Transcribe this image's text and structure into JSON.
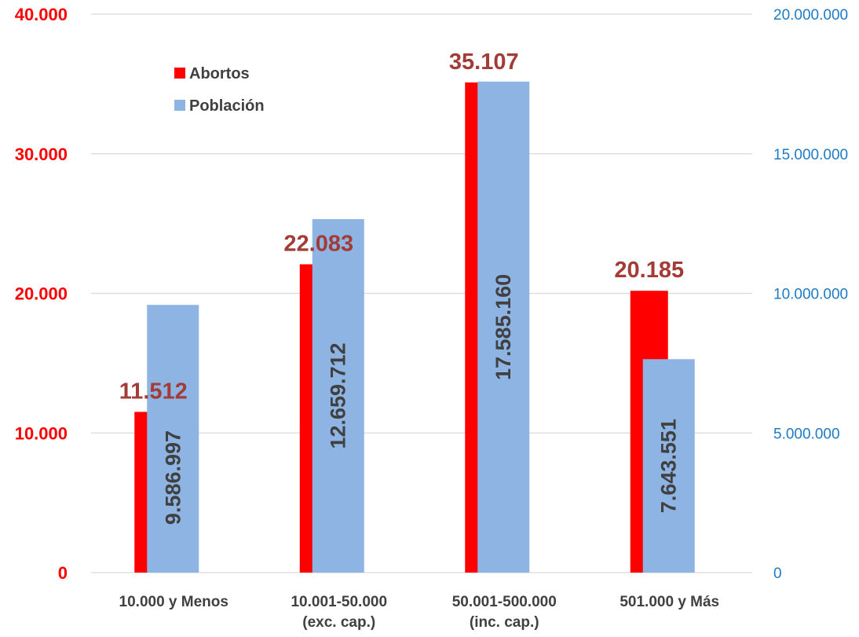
{
  "chart_data": {
    "type": "bar",
    "categories": [
      [
        "10.000 y Menos"
      ],
      [
        "10.001-50.000",
        "(exc. cap.)"
      ],
      [
        "50.001-500.000",
        "(inc. cap.)"
      ],
      [
        "501.000 y Más"
      ]
    ],
    "series": [
      {
        "name": "Abortos",
        "axis": "left",
        "color": "#ff0000",
        "values": [
          11512,
          22083,
          35107,
          20185
        ],
        "labels": [
          "11.512",
          "22.083",
          "35.107",
          "20.185"
        ],
        "label_color": "#a33b36"
      },
      {
        "name": "Población",
        "axis": "right",
        "color": "#8eb4e3",
        "values": [
          9586997,
          12659712,
          17585160,
          7643551
        ],
        "labels": [
          "9.586.997",
          "12.659.712",
          "17.585.160",
          "7.643.551"
        ],
        "label_color": "#404040"
      }
    ],
    "y_left": {
      "lim": [
        0,
        40000
      ],
      "ticks": [
        0,
        10000,
        20000,
        30000,
        40000
      ],
      "tick_labels": [
        "0",
        "10.000",
        "20.000",
        "30.000",
        "40.000"
      ],
      "color": "#ff0000"
    },
    "y_right": {
      "lim": [
        0,
        20000000
      ],
      "ticks": [
        0,
        5000000,
        10000000,
        15000000,
        20000000
      ],
      "tick_labels": [
        "0",
        "5.000.000",
        "10.000.000",
        "15.000.000",
        "20.000.000"
      ],
      "color": "#1f7ac4"
    },
    "grid": true,
    "legend": "top-left"
  }
}
